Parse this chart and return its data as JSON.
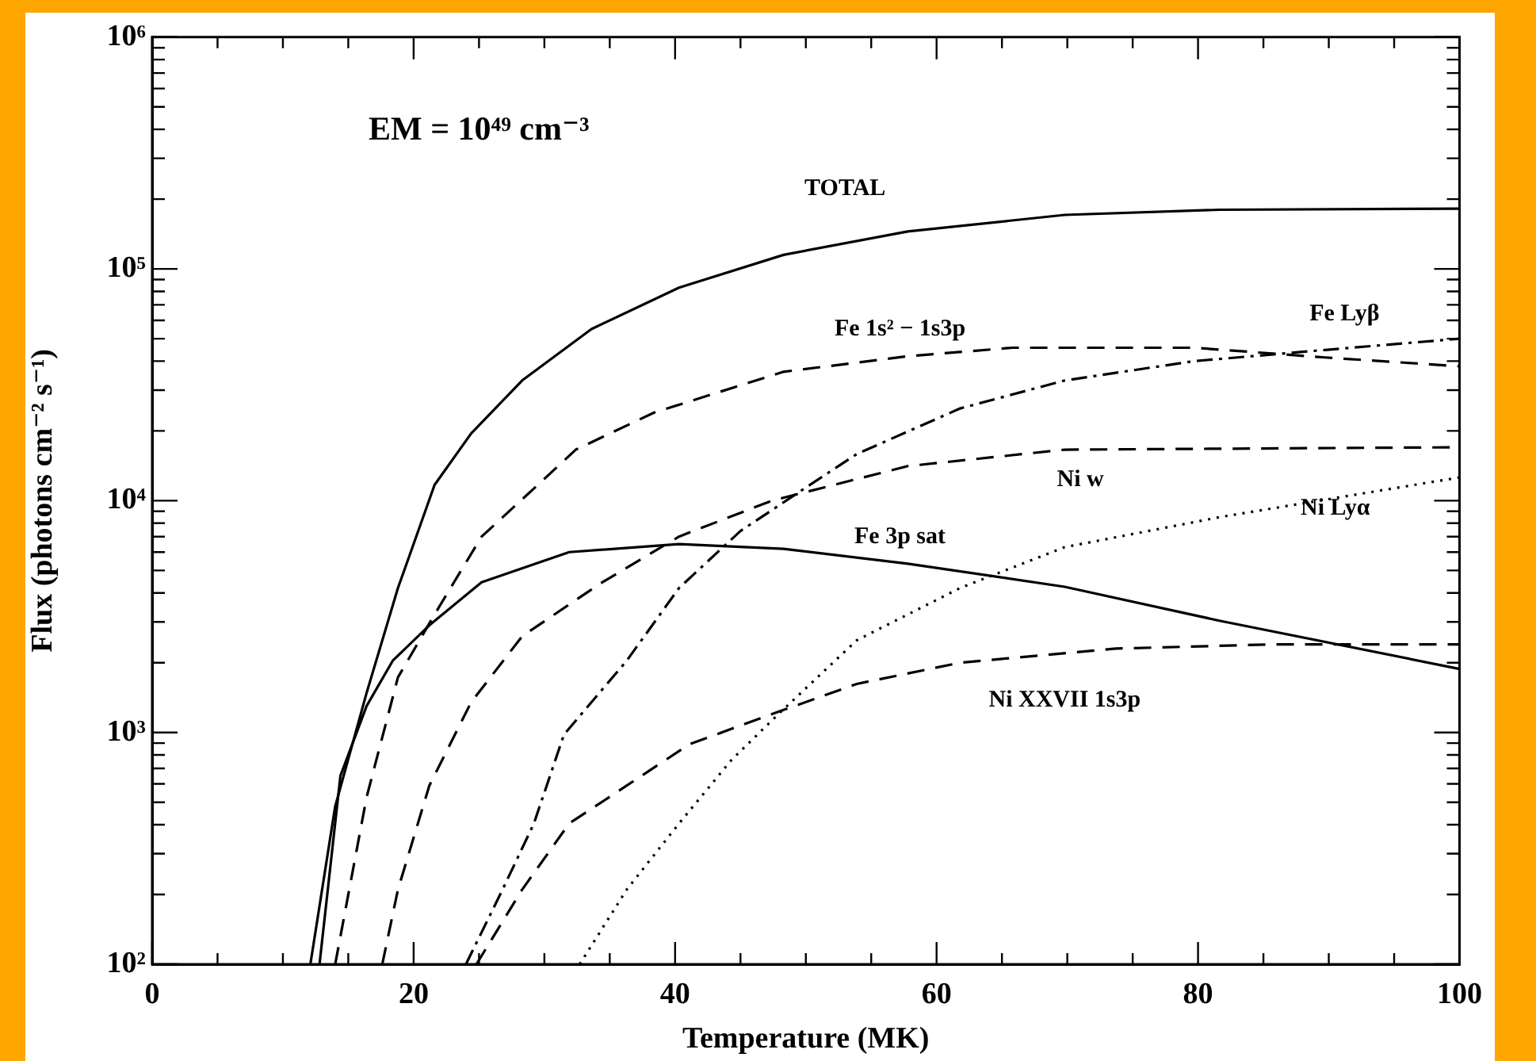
{
  "chart_data": {
    "type": "line",
    "xlabel": "Temperature (MK)",
    "ylabel": "Flux (photons cm⁻² s⁻¹)",
    "log": "y",
    "grid": false,
    "legend": false,
    "marker": "none",
    "xlim": [
      0,
      100
    ],
    "ylim": [
      100,
      1000000
    ],
    "xticks": [
      0,
      {
        "value": 5,
        "label": null
      },
      {
        "value": 10,
        "label": null
      },
      {
        "value": 15,
        "label": null
      },
      20,
      {
        "value": 25,
        "label": null
      },
      {
        "value": 30,
        "label": null
      },
      {
        "value": 35,
        "label": null
      },
      40,
      {
        "value": 45,
        "label": null
      },
      {
        "value": 50,
        "label": null
      },
      {
        "value": 55,
        "label": null
      },
      60,
      {
        "value": 65,
        "label": null
      },
      {
        "value": 70,
        "label": null
      },
      {
        "value": 75,
        "label": null
      },
      80,
      {
        "value": 85,
        "label": null
      },
      {
        "value": 90,
        "label": null
      },
      {
        "value": 95,
        "label": null
      },
      100
    ],
    "yticks": [
      {
        "value": 100,
        "label": "10²"
      },
      {
        "value": 200,
        "label": null
      },
      {
        "value": 300,
        "label": null
      },
      {
        "value": 400,
        "label": null
      },
      {
        "value": 500,
        "label": null
      },
      {
        "value": 600,
        "label": null
      },
      {
        "value": 700,
        "label": null
      },
      {
        "value": 800,
        "label": null
      },
      {
        "value": 900,
        "label": null
      },
      {
        "value": 1000,
        "label": "10³"
      },
      {
        "value": 2000,
        "label": null
      },
      {
        "value": 3000,
        "label": null
      },
      {
        "value": 4000,
        "label": null
      },
      {
        "value": 5000,
        "label": null
      },
      {
        "value": 6000,
        "label": null
      },
      {
        "value": 7000,
        "label": null
      },
      {
        "value": 8000,
        "label": null
      },
      {
        "value": 9000,
        "label": null
      },
      {
        "value": 10000,
        "label": "10⁴"
      },
      {
        "value": 20000,
        "label": null
      },
      {
        "value": 30000,
        "label": null
      },
      {
        "value": 40000,
        "label": null
      },
      {
        "value": 50000,
        "label": null
      },
      {
        "value": 60000,
        "label": null
      },
      {
        "value": 70000,
        "label": null
      },
      {
        "value": 80000,
        "label": null
      },
      {
        "value": 90000,
        "label": null
      },
      {
        "value": 100000,
        "label": "10⁵"
      },
      {
        "value": 200000,
        "label": null
      },
      {
        "value": 300000,
        "label": null
      },
      {
        "value": 400000,
        "label": null
      },
      {
        "value": 500000,
        "label": null
      },
      {
        "value": 600000,
        "label": null
      },
      {
        "value": 700000,
        "label": null
      },
      {
        "value": 800000,
        "label": null
      },
      {
        "value": 900000,
        "label": null
      },
      {
        "value": 1000000,
        "label": "10⁶"
      }
    ],
    "series": [
      {
        "name": "TOTAL",
        "color": "#000000",
        "line_style": "solid",
        "x": [
          12.1,
          14,
          16.4,
          18.8,
          21.6,
          24.4,
          28.3,
          33.6,
          40.3,
          48.3,
          57.8,
          69.8,
          81.7,
          100
        ],
        "values": [
          100,
          480,
          1480,
          4200,
          11700,
          19500,
          33000,
          55000,
          83000,
          115000,
          145000,
          171000,
          180000,
          182000
        ]
      },
      {
        "name": "Fe 3p sat",
        "color": "#000000",
        "line_style": "solid",
        "x": [
          12.8,
          14.4,
          16.4,
          18.4,
          21.2,
          25.2,
          31.9,
          40.3,
          48.3,
          57.8,
          69.8,
          81.7,
          100
        ],
        "values": [
          100,
          650,
          1300,
          2040,
          2900,
          4450,
          6000,
          6500,
          6200,
          5350,
          4250,
          3030,
          1880
        ]
      },
      {
        "name": "Fe 1s² − 1s3p",
        "color": "#000000",
        "line_style": "dashed",
        "x": [
          14,
          16.4,
          18.8,
          21.6,
          25.2,
          29.5,
          32.4,
          38.4,
          48.3,
          57.8,
          65.8,
          79.7,
          89.7,
          100
        ],
        "values": [
          100,
          525,
          1730,
          3230,
          7000,
          11700,
          16600,
          24000,
          36000,
          42000,
          45700,
          45700,
          41500,
          38000
        ]
      },
      {
        "name": "Ni w",
        "color": "#000000",
        "line_style": "dashed",
        "x": [
          17.6,
          18.8,
          21.2,
          24.4,
          28.3,
          34.3,
          40.3,
          47.4,
          57.8,
          69.8,
          100
        ],
        "values": [
          100,
          210,
          590,
          1350,
          2600,
          4400,
          7000,
          10000,
          14100,
          16600,
          17000
        ]
      },
      {
        "name": "Fe Lyβ",
        "color": "#000000",
        "line_style": "dashdot",
        "x": [
          24,
          26.8,
          29.2,
          31.5,
          36.3,
          40.3,
          45,
          49.8,
          53.9,
          61.8,
          69.8,
          79.7,
          89.7,
          100
        ],
        "values": [
          100,
          210,
          405,
          980,
          2040,
          4200,
          7400,
          11200,
          15900,
          25000,
          33000,
          40000,
          44700,
          50000
        ]
      },
      {
        "name": "Ni XXVII 1s3p",
        "color": "#000000",
        "line_style": "dashed",
        "x": [
          24.8,
          28.3,
          31.9,
          36.3,
          41.1,
          47.4,
          53.9,
          61.8,
          73.7,
          85.7,
          100
        ],
        "values": [
          100,
          210,
          405,
          590,
          890,
          1200,
          1620,
          2000,
          2300,
          2400,
          2400
        ]
      },
      {
        "name": "Ni Lyα",
        "color": "#000000",
        "line_style": "dotted",
        "x": [
          32.7,
          36.3,
          40.3,
          44.3,
          47.9,
          53.9,
          61.8,
          69.8,
          81.7,
          100
        ],
        "values": [
          100,
          210,
          405,
          760,
          1200,
          2500,
          4200,
          6300,
          8500,
          12600
        ]
      }
    ],
    "annotations": [
      "EM = 10⁴⁹ cm⁻³"
    ]
  }
}
